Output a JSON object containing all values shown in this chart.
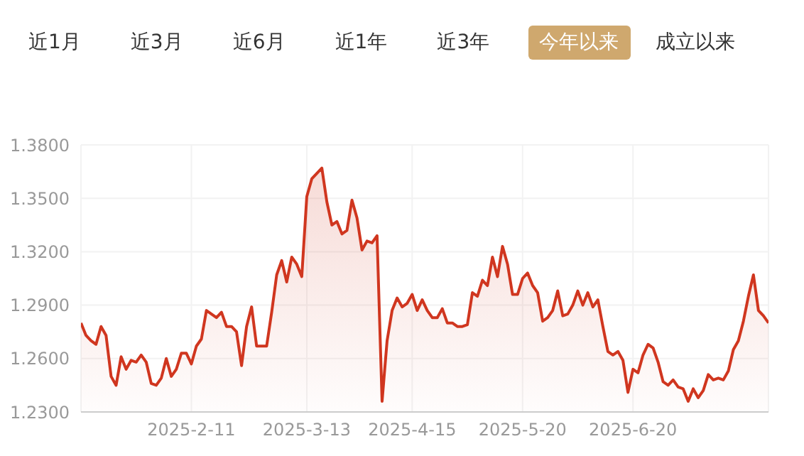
{
  "chart_data": {
    "type": "area",
    "annotations": [
      "近1月",
      "近3月",
      "近6月",
      "近1年",
      "近3年",
      "今年以来",
      "成立以来"
    ],
    "categories": [
      null,
      null,
      null,
      null,
      null,
      null,
      null,
      null,
      null,
      null,
      null,
      null,
      null,
      null,
      null,
      null,
      null,
      null,
      null,
      null,
      null,
      null,
      "2025-2-11",
      null,
      null,
      null,
      null,
      null,
      null,
      null,
      null,
      null,
      null,
      null,
      null,
      null,
      null,
      null,
      null,
      null,
      null,
      null,
      null,
      null,
      null,
      "2025-3-13",
      null,
      null,
      null,
      null,
      null,
      null,
      null,
      null,
      null,
      null,
      null,
      null,
      null,
      null,
      null,
      null,
      null,
      null,
      null,
      null,
      "2025-4-15",
      null,
      null,
      null,
      null,
      null,
      null,
      null,
      null,
      null,
      null,
      null,
      null,
      null,
      null,
      null,
      null,
      null,
      null,
      null,
      null,
      null,
      "2025-5-20",
      null,
      null,
      null,
      null,
      null,
      null,
      null,
      null,
      null,
      null,
      null,
      null,
      null,
      null,
      null,
      null,
      null,
      null,
      null,
      null,
      null,
      "2025-6-20",
      null,
      null,
      null,
      null,
      null,
      null,
      null,
      null,
      null,
      null,
      null,
      null,
      null,
      null,
      null,
      null,
      null,
      null,
      null,
      null,
      null,
      null,
      null,
      null,
      null,
      null,
      null
    ],
    "series": [
      {
        "color": "#d0361f",
        "values": [
          1.28,
          1.273,
          1.27,
          1.268,
          1.278,
          1.273,
          1.25,
          1.245,
          1.261,
          1.254,
          1.259,
          1.258,
          1.262,
          1.258,
          1.246,
          1.245,
          1.249,
          1.26,
          1.25,
          1.254,
          1.263,
          1.263,
          1.257,
          1.267,
          1.271,
          1.287,
          1.285,
          1.283,
          1.286,
          1.278,
          1.278,
          1.275,
          1.256,
          1.278,
          1.289,
          1.267,
          1.267,
          1.267,
          1.286,
          1.307,
          1.315,
          1.303,
          1.317,
          1.313,
          1.306,
          1.351,
          1.361,
          1.364,
          1.367,
          1.348,
          1.335,
          1.337,
          1.33,
          1.332,
          1.349,
          1.339,
          1.321,
          1.326,
          1.325,
          1.329,
          1.236,
          1.27,
          1.287,
          1.294,
          1.289,
          1.291,
          1.296,
          1.287,
          1.293,
          1.287,
          1.283,
          1.283,
          1.288,
          1.28,
          1.28,
          1.278,
          1.278,
          1.279,
          1.297,
          1.295,
          1.304,
          1.301,
          1.317,
          1.306,
          1.323,
          1.313,
          1.296,
          1.296,
          1.305,
          1.308,
          1.301,
          1.297,
          1.281,
          1.283,
          1.287,
          1.298,
          1.284,
          1.285,
          1.29,
          1.298,
          1.29,
          1.297,
          1.289,
          1.293,
          1.278,
          1.264,
          1.262,
          1.264,
          1.259,
          1.241,
          1.254,
          1.252,
          1.262,
          1.268,
          1.266,
          1.258,
          1.247,
          1.245,
          1.248,
          1.244,
          1.243,
          1.236,
          1.243,
          1.238,
          1.242,
          1.251,
          1.248,
          1.249,
          1.248,
          1.253,
          1.265,
          1.27,
          1.281,
          1.295,
          1.307,
          1.287,
          1.284,
          1.28
        ]
      }
    ],
    "ylim": [
      1.23,
      1.38
    ],
    "yticks": [
      {
        "value": 1.23,
        "label": "1.2300"
      },
      {
        "value": 1.26,
        "label": "1.2600"
      },
      {
        "value": 1.29,
        "label": "1.2900"
      },
      {
        "value": 1.32,
        "label": "1.3200"
      },
      {
        "value": 1.35,
        "label": "1.3500"
      },
      {
        "value": 1.38,
        "label": "1.3800"
      }
    ],
    "grid": true
  }
}
